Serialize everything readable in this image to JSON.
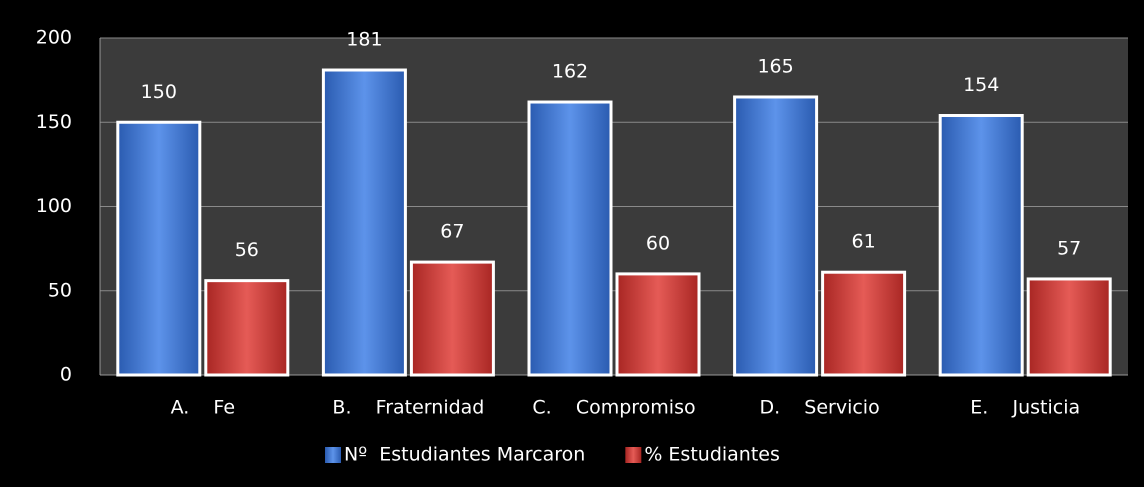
{
  "chart_data": {
    "type": "bar",
    "categories": [
      "A.    Fe",
      "B.    Fraternidad",
      "C.    Compromiso",
      "D.    Servicio",
      "E.    Justicia"
    ],
    "series": [
      {
        "name": "Nº  Estudiantes Marcaron",
        "color": "#3d76d4",
        "values": [
          150,
          181,
          162,
          165,
          154
        ]
      },
      {
        "name": "% Estudiantes",
        "color": "#d43c38",
        "values": [
          56,
          67,
          60,
          61,
          57
        ]
      }
    ],
    "ylim": [
      0,
      200
    ],
    "yticks": [
      0,
      50,
      100,
      150,
      200
    ],
    "grid": true,
    "legend": "bottom"
  }
}
